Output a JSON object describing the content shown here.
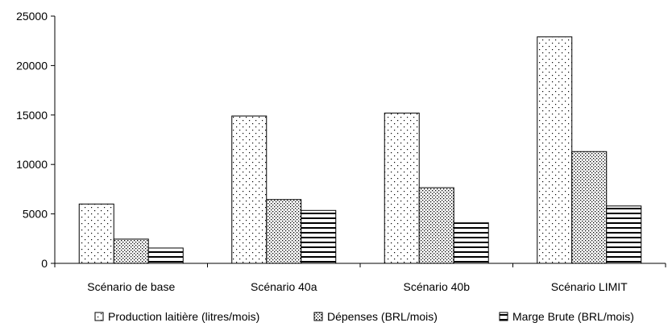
{
  "chart_data": {
    "type": "bar",
    "categories": [
      "Scénario de base",
      "Scénario 40a",
      "Scénario 40b",
      "Scénario LIMIT"
    ],
    "series": [
      {
        "name": "Production laitière (litres/mois)",
        "values": [
          6000,
          14900,
          15200,
          22900
        ],
        "pattern": "sparse-dots"
      },
      {
        "name": "Dépenses (BRL/mois)",
        "values": [
          2450,
          6450,
          7650,
          11300
        ],
        "pattern": "dense-dots"
      },
      {
        "name": "Marge Brute (BRL/mois)",
        "values": [
          1550,
          5350,
          4100,
          5800
        ],
        "pattern": "horizontal-lines"
      }
    ],
    "yticks": [
      0,
      5000,
      10000,
      15000,
      20000,
      25000
    ],
    "ylim": [
      0,
      25000
    ],
    "legend_position": "bottom",
    "grid": false
  }
}
